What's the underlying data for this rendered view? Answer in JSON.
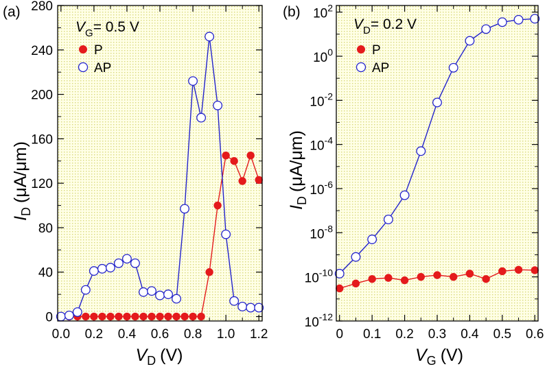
{
  "colors": {
    "p": "#e41a1c",
    "ap": "#2222cc",
    "panel_bg": "#ffffe6",
    "panel_dot": "#d8d87a"
  },
  "figure": {
    "panel_a_label": "(a)",
    "panel_b_label": "(b)"
  },
  "chart_data": [
    {
      "type": "line",
      "panel": "(a)",
      "annotation": {
        "var": "V",
        "sub": "G",
        "text": "= 0.5 V"
      },
      "xlabel": {
        "var": "V",
        "sub": "D",
        "unit": "(V)"
      },
      "ylabel": {
        "var": "I",
        "sub": "D",
        "unit": "(μA/μm)"
      },
      "xlim": [
        -0.02,
        1.22
      ],
      "ylim": [
        -4,
        280
      ],
      "yscale": "linear",
      "xticks": [
        0.0,
        0.2,
        0.4,
        0.6,
        0.8,
        1.0,
        1.2
      ],
      "xtick_labels": [
        "0.0",
        "0.2",
        "0.4",
        "0.6",
        "0.8",
        "1.0",
        "1.2"
      ],
      "yticks": [
        0,
        40,
        80,
        120,
        160,
        200,
        240,
        280
      ],
      "ytick_labels": [
        "0",
        "40",
        "80",
        "120",
        "160",
        "200",
        "240",
        "280"
      ],
      "legend": {
        "position": "top-left",
        "entries": [
          "P",
          "AP"
        ]
      },
      "series": [
        {
          "name": "P",
          "marker": "filled-circle",
          "color": "#e41a1c",
          "x": [
            0.0,
            0.05,
            0.1,
            0.15,
            0.2,
            0.25,
            0.3,
            0.35,
            0.4,
            0.45,
            0.5,
            0.55,
            0.6,
            0.65,
            0.7,
            0.75,
            0.8,
            0.85,
            0.9,
            0.95,
            1.0,
            1.05,
            1.1,
            1.15,
            1.2
          ],
          "y": [
            0,
            0,
            0,
            0,
            0,
            0,
            0,
            0,
            0,
            0,
            0,
            0,
            0,
            0,
            0,
            0,
            0,
            0,
            40,
            100,
            145,
            140,
            122,
            145,
            123
          ]
        },
        {
          "name": "AP",
          "marker": "open-circle",
          "color": "#2222cc",
          "x": [
            0.0,
            0.05,
            0.1,
            0.15,
            0.2,
            0.25,
            0.3,
            0.35,
            0.4,
            0.45,
            0.5,
            0.55,
            0.6,
            0.65,
            0.7,
            0.75,
            0.8,
            0.85,
            0.9,
            0.95,
            1.0,
            1.05,
            1.1,
            1.15,
            1.2
          ],
          "y": [
            0,
            1,
            4,
            24,
            41,
            43,
            44,
            48,
            52,
            48,
            22,
            23,
            19,
            20,
            16,
            97,
            212,
            179,
            252,
            190,
            74,
            14,
            9,
            8,
            8
          ]
        }
      ]
    },
    {
      "type": "line",
      "panel": "(b)",
      "annotation": {
        "var": "V",
        "sub": "D",
        "text": "= 0.2 V"
      },
      "xlabel": {
        "var": "V",
        "sub": "G",
        "unit": "(V)"
      },
      "ylabel": {
        "var": "I",
        "sub": "D",
        "unit": "(μA/μm)"
      },
      "xlim": [
        -0.01,
        0.61
      ],
      "ylim_log10": [
        -12,
        2.3
      ],
      "yscale": "log",
      "xticks": [
        0,
        0.1,
        0.2,
        0.3,
        0.4,
        0.5,
        0.6
      ],
      "xtick_labels": [
        "0",
        "0.1",
        "0.2",
        "0.3",
        "0.4",
        "0.5",
        "0.6"
      ],
      "yticks_log10": [
        -12,
        -10,
        -8,
        -6,
        -4,
        -2,
        0,
        2
      ],
      "ytick_labels": [
        {
          "base": "10",
          "exp": "-12"
        },
        {
          "base": "10",
          "exp": "-10"
        },
        {
          "base": "10",
          "exp": "-8"
        },
        {
          "base": "10",
          "exp": "-6"
        },
        {
          "base": "10",
          "exp": "-4"
        },
        {
          "base": "10",
          "exp": "-2"
        },
        {
          "base": "10",
          "exp": "0"
        },
        {
          "base": "10",
          "exp": "2"
        }
      ],
      "legend": {
        "position": "top-left",
        "entries": [
          "P",
          "AP"
        ]
      },
      "series": [
        {
          "name": "P",
          "marker": "filled-circle",
          "color": "#e41a1c",
          "x": [
            0,
            0.05,
            0.1,
            0.15,
            0.2,
            0.25,
            0.3,
            0.35,
            0.4,
            0.45,
            0.5,
            0.55,
            0.6
          ],
          "y": [
            3e-11,
            5e-11,
            8e-11,
            9e-11,
            7e-11,
            1e-10,
            1.2e-10,
            1e-10,
            1.4e-10,
            8e-11,
            1.8e-10,
            2.1e-10,
            2e-10
          ]
        },
        {
          "name": "AP",
          "marker": "open-circle",
          "color": "#2222cc",
          "x": [
            0,
            0.05,
            0.1,
            0.15,
            0.2,
            0.25,
            0.3,
            0.35,
            0.4,
            0.45,
            0.5,
            0.55,
            0.6
          ],
          "y": [
            1.4e-10,
            8e-10,
            5e-09,
            4e-08,
            5e-07,
            5e-05,
            0.008,
            0.3,
            5,
            17,
            35,
            45,
            50
          ]
        }
      ]
    }
  ]
}
